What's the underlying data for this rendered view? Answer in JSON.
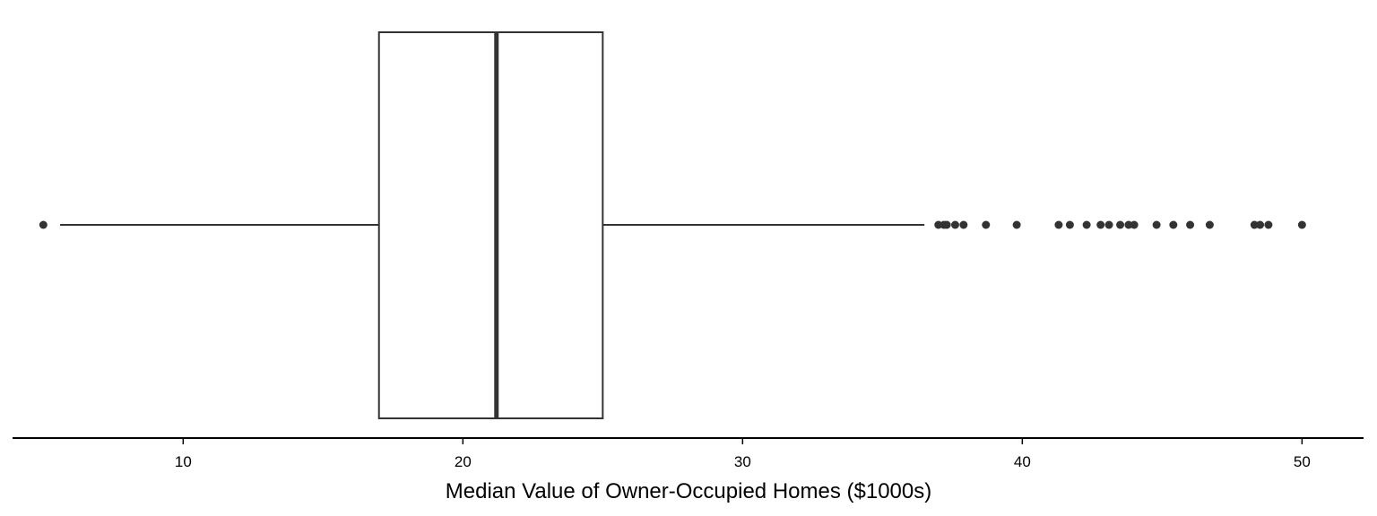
{
  "chart_data": {
    "type": "boxplot",
    "orientation": "horizontal",
    "xlabel": "Median Value of Owner-Occupied Homes ($1000s)",
    "xlim": [
      3.9,
      52.2
    ],
    "xticks": [
      10,
      20,
      30,
      40,
      50
    ],
    "tick_labels": [
      "10",
      "20",
      "30",
      "40",
      "50"
    ],
    "box": {
      "q1": 17.0,
      "median": 21.2,
      "q3": 25.0,
      "whisker_low": 5.6,
      "whisker_high": 36.5
    },
    "outliers": [
      5.0,
      37.0,
      37.2,
      37.3,
      37.6,
      37.9,
      38.7,
      39.8,
      41.3,
      41.7,
      42.3,
      42.8,
      43.1,
      43.5,
      43.8,
      44.0,
      44.8,
      45.4,
      46.0,
      46.7,
      48.3,
      48.5,
      48.8,
      50.0
    ],
    "colors": {
      "stroke": "#333333",
      "outlier": "#333333",
      "axis": "#000000"
    }
  }
}
